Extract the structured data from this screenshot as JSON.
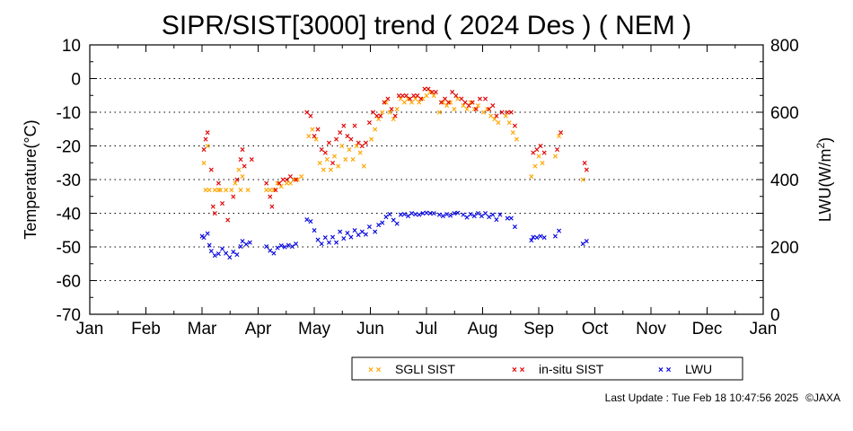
{
  "chart_data": {
    "type": "scatter",
    "title": "SIPR/SIST[3000] trend ( 2024 Des ) ( NEM )",
    "ylabel": "Temperature(°C)",
    "y2label_main": "LWU(W/m",
    "y2label_sup": "2",
    "y2label_end": ")",
    "ylim": [
      -70,
      10
    ],
    "y2lim": [
      0,
      800
    ],
    "yticks": [
      "10",
      "0",
      "-10",
      "-20",
      "-30",
      "-40",
      "-50",
      "-60",
      "-70"
    ],
    "y2ticks": [
      "800",
      "600",
      "400",
      "200",
      "0"
    ],
    "xticks": [
      "Jan",
      "Feb",
      "Mar",
      "Apr",
      "May",
      "Jun",
      "Jul",
      "Aug",
      "Sep",
      "Oct",
      "Nov",
      "Dec",
      "Jan"
    ],
    "grid": "horizontal dotted",
    "legend_position": "bottom",
    "series": [
      {
        "name": "SGLI SIST",
        "marker": "x",
        "color": "#ffa500",
        "axis": "left",
        "points": [
          [
            "2024-03-03",
            -25
          ],
          [
            "2024-03-04",
            -33
          ],
          [
            "2024-03-05",
            -20
          ],
          [
            "2024-03-06",
            -33
          ],
          [
            "2024-03-09",
            -33
          ],
          [
            "2024-03-11",
            -33
          ],
          [
            "2024-03-12",
            -33
          ],
          [
            "2024-03-15",
            -33
          ],
          [
            "2024-03-18",
            -33
          ],
          [
            "2024-03-20",
            -31
          ],
          [
            "2024-03-22",
            -27
          ],
          [
            "2024-03-23",
            -33
          ],
          [
            "2024-03-24",
            -29
          ],
          [
            "2024-03-27",
            -33
          ],
          [
            "2024-04-06",
            -33
          ],
          [
            "2024-04-08",
            -33
          ],
          [
            "2024-04-10",
            -33
          ],
          [
            "2024-04-12",
            -31
          ],
          [
            "2024-04-14",
            -32
          ],
          [
            "2024-04-17",
            -31
          ],
          [
            "2024-04-19",
            -31
          ],
          [
            "2024-04-21",
            -30
          ],
          [
            "2024-04-23",
            -30
          ],
          [
            "2024-04-25",
            -29
          ],
          [
            "2024-04-29",
            -17
          ],
          [
            "2024-05-01",
            -15
          ],
          [
            "2024-05-03",
            -18
          ],
          [
            "2024-05-05",
            -25
          ],
          [
            "2024-05-07",
            -27
          ],
          [
            "2024-05-09",
            -24
          ],
          [
            "2024-05-11",
            -27
          ],
          [
            "2024-05-13",
            -23
          ],
          [
            "2024-05-15",
            -26
          ],
          [
            "2024-05-17",
            -20
          ],
          [
            "2024-05-19",
            -24
          ],
          [
            "2024-05-21",
            -21
          ],
          [
            "2024-05-23",
            -24
          ],
          [
            "2024-05-25",
            -20
          ],
          [
            "2024-05-27",
            -22
          ],
          [
            "2024-05-29",
            -26
          ],
          [
            "2024-06-02",
            -18
          ],
          [
            "2024-06-04",
            -15
          ],
          [
            "2024-06-06",
            -12
          ],
          [
            "2024-06-08",
            -10
          ],
          [
            "2024-06-10",
            -7
          ],
          [
            "2024-06-12",
            -10
          ],
          [
            "2024-06-14",
            -12
          ],
          [
            "2024-06-16",
            -9
          ],
          [
            "2024-06-18",
            -6
          ],
          [
            "2024-06-20",
            -7
          ],
          [
            "2024-06-22",
            -6
          ],
          [
            "2024-06-24",
            -7
          ],
          [
            "2024-06-26",
            -6
          ],
          [
            "2024-06-28",
            -7
          ],
          [
            "2024-06-30",
            -6
          ],
          [
            "2024-07-02",
            -5
          ],
          [
            "2024-07-04",
            -4
          ],
          [
            "2024-07-06",
            -5
          ],
          [
            "2024-07-09",
            -10
          ],
          [
            "2024-07-11",
            -7
          ],
          [
            "2024-07-13",
            -8
          ],
          [
            "2024-07-15",
            -7
          ],
          [
            "2024-07-17",
            -9
          ],
          [
            "2024-07-19",
            -6
          ],
          [
            "2024-07-22",
            -8
          ],
          [
            "2024-07-24",
            -9
          ],
          [
            "2024-07-26",
            -7
          ],
          [
            "2024-07-28",
            -9
          ],
          [
            "2024-07-30",
            -8
          ],
          [
            "2024-08-02",
            -10
          ],
          [
            "2024-08-04",
            -9
          ],
          [
            "2024-08-06",
            -11
          ],
          [
            "2024-08-08",
            -12
          ],
          [
            "2024-08-10",
            -13
          ],
          [
            "2024-08-14",
            -11
          ],
          [
            "2024-08-16",
            -13
          ],
          [
            "2024-08-18",
            -16
          ],
          [
            "2024-08-20",
            -18
          ],
          [
            "2024-08-28",
            -29
          ],
          [
            "2024-08-30",
            -26
          ],
          [
            "2024-09-01",
            -23
          ],
          [
            "2024-09-03",
            -25
          ],
          [
            "2024-09-10",
            -23
          ],
          [
            "2024-09-12",
            -17
          ],
          [
            "2024-09-25",
            -30
          ]
        ]
      },
      {
        "name": "in-situ SIST",
        "marker": "x",
        "color": "#e00000",
        "axis": "left",
        "points": [
          [
            "2024-03-03",
            -21
          ],
          [
            "2024-03-04",
            -18
          ],
          [
            "2024-03-05",
            -16
          ],
          [
            "2024-03-07",
            -27
          ],
          [
            "2024-03-08",
            -38
          ],
          [
            "2024-03-09",
            -40
          ],
          [
            "2024-03-11",
            -31
          ],
          [
            "2024-03-13",
            -37
          ],
          [
            "2024-03-16",
            -42
          ],
          [
            "2024-03-19",
            -35
          ],
          [
            "2024-03-21",
            -30
          ],
          [
            "2024-03-23",
            -24
          ],
          [
            "2024-03-24",
            -21
          ],
          [
            "2024-03-25",
            -26
          ],
          [
            "2024-03-29",
            -24
          ],
          [
            "2024-04-06",
            -31
          ],
          [
            "2024-04-08",
            -35
          ],
          [
            "2024-04-09",
            -38
          ],
          [
            "2024-04-11",
            -33
          ],
          [
            "2024-04-13",
            -31
          ],
          [
            "2024-04-15",
            -30
          ],
          [
            "2024-04-17",
            -30
          ],
          [
            "2024-04-19",
            -29
          ],
          [
            "2024-04-22",
            -30
          ],
          [
            "2024-04-28",
            -10
          ],
          [
            "2024-04-30",
            -11
          ],
          [
            "2024-05-02",
            -17
          ],
          [
            "2024-05-04",
            -15
          ],
          [
            "2024-05-06",
            -21
          ],
          [
            "2024-05-08",
            -22
          ],
          [
            "2024-05-10",
            -19
          ],
          [
            "2024-05-12",
            -25
          ],
          [
            "2024-05-14",
            -18
          ],
          [
            "2024-05-16",
            -16
          ],
          [
            "2024-05-18",
            -14
          ],
          [
            "2024-05-20",
            -17
          ],
          [
            "2024-05-22",
            -18
          ],
          [
            "2024-05-24",
            -14
          ],
          [
            "2024-05-26",
            -19
          ],
          [
            "2024-05-28",
            -20
          ],
          [
            "2024-05-30",
            -19
          ],
          [
            "2024-06-01",
            -13
          ],
          [
            "2024-06-03",
            -10
          ],
          [
            "2024-06-05",
            -11
          ],
          [
            "2024-06-07",
            -11
          ],
          [
            "2024-06-09",
            -7
          ],
          [
            "2024-06-11",
            -6
          ],
          [
            "2024-06-13",
            -9
          ],
          [
            "2024-06-15",
            -11
          ],
          [
            "2024-06-17",
            -5
          ],
          [
            "2024-06-19",
            -5
          ],
          [
            "2024-06-21",
            -5
          ],
          [
            "2024-06-23",
            -6
          ],
          [
            "2024-06-25",
            -5
          ],
          [
            "2024-06-27",
            -5
          ],
          [
            "2024-06-29",
            -6
          ],
          [
            "2024-07-01",
            -3
          ],
          [
            "2024-07-03",
            -3
          ],
          [
            "2024-07-05",
            -4
          ],
          [
            "2024-07-07",
            -4
          ],
          [
            "2024-07-10",
            -7
          ],
          [
            "2024-07-12",
            -6
          ],
          [
            "2024-07-14",
            -7
          ],
          [
            "2024-07-16",
            -4
          ],
          [
            "2024-07-18",
            -5
          ],
          [
            "2024-07-21",
            -6
          ],
          [
            "2024-07-23",
            -7
          ],
          [
            "2024-07-25",
            -8
          ],
          [
            "2024-07-27",
            -7
          ],
          [
            "2024-07-29",
            -9
          ],
          [
            "2024-07-31",
            -6
          ],
          [
            "2024-08-03",
            -6
          ],
          [
            "2024-08-05",
            -9
          ],
          [
            "2024-08-07",
            -8
          ],
          [
            "2024-08-09",
            -11
          ],
          [
            "2024-08-12",
            -10
          ],
          [
            "2024-08-15",
            -10
          ],
          [
            "2024-08-17",
            -10
          ],
          [
            "2024-08-19",
            -14
          ],
          [
            "2024-08-29",
            -22
          ],
          [
            "2024-08-31",
            -21
          ],
          [
            "2024-09-02",
            -20
          ],
          [
            "2024-09-04",
            -22
          ],
          [
            "2024-09-11",
            -21
          ],
          [
            "2024-09-13",
            -16
          ],
          [
            "2024-09-26",
            -25
          ],
          [
            "2024-09-27",
            -27
          ]
        ]
      },
      {
        "name": "LWU",
        "marker": "x",
        "color": "#0000e0",
        "axis": "right",
        "points": [
          [
            "2024-03-02",
            232
          ],
          [
            "2024-03-03",
            228
          ],
          [
            "2024-03-05",
            240
          ],
          [
            "2024-03-06",
            205
          ],
          [
            "2024-03-07",
            188
          ],
          [
            "2024-03-09",
            175
          ],
          [
            "2024-03-11",
            180
          ],
          [
            "2024-03-13",
            195
          ],
          [
            "2024-03-15",
            182
          ],
          [
            "2024-03-17",
            170
          ],
          [
            "2024-03-19",
            186
          ],
          [
            "2024-03-21",
            178
          ],
          [
            "2024-03-23",
            202
          ],
          [
            "2024-03-24",
            218
          ],
          [
            "2024-03-26",
            208
          ],
          [
            "2024-03-28",
            214
          ],
          [
            "2024-04-06",
            202
          ],
          [
            "2024-04-08",
            190
          ],
          [
            "2024-04-10",
            182
          ],
          [
            "2024-04-12",
            198
          ],
          [
            "2024-04-14",
            204
          ],
          [
            "2024-04-16",
            200
          ],
          [
            "2024-04-18",
            206
          ],
          [
            "2024-04-20",
            202
          ],
          [
            "2024-04-22",
            210
          ],
          [
            "2024-04-28",
            282
          ],
          [
            "2024-04-30",
            276
          ],
          [
            "2024-05-02",
            250
          ],
          [
            "2024-05-04",
            222
          ],
          [
            "2024-05-06",
            210
          ],
          [
            "2024-05-08",
            228
          ],
          [
            "2024-05-10",
            214
          ],
          [
            "2024-05-12",
            230
          ],
          [
            "2024-05-14",
            214
          ],
          [
            "2024-05-16",
            246
          ],
          [
            "2024-05-18",
            226
          ],
          [
            "2024-05-20",
            242
          ],
          [
            "2024-05-22",
            230
          ],
          [
            "2024-05-24",
            250
          ],
          [
            "2024-05-26",
            236
          ],
          [
            "2024-05-28",
            245
          ],
          [
            "2024-05-30",
            238
          ],
          [
            "2024-06-01",
            260
          ],
          [
            "2024-06-04",
            245
          ],
          [
            "2024-06-06",
            265
          ],
          [
            "2024-06-08",
            272
          ],
          [
            "2024-06-10",
            290
          ],
          [
            "2024-06-12",
            298
          ],
          [
            "2024-06-14",
            280
          ],
          [
            "2024-06-16",
            270
          ],
          [
            "2024-06-18",
            296
          ],
          [
            "2024-06-20",
            298
          ],
          [
            "2024-06-22",
            292
          ],
          [
            "2024-06-24",
            300
          ],
          [
            "2024-06-26",
            298
          ],
          [
            "2024-06-28",
            296
          ],
          [
            "2024-06-30",
            300
          ],
          [
            "2024-07-02",
            302
          ],
          [
            "2024-07-04",
            300
          ],
          [
            "2024-07-06",
            300
          ],
          [
            "2024-07-09",
            296
          ],
          [
            "2024-07-11",
            292
          ],
          [
            "2024-07-13",
            298
          ],
          [
            "2024-07-15",
            294
          ],
          [
            "2024-07-17",
            300
          ],
          [
            "2024-07-19",
            302
          ],
          [
            "2024-07-22",
            296
          ],
          [
            "2024-07-24",
            288
          ],
          [
            "2024-07-26",
            298
          ],
          [
            "2024-07-28",
            292
          ],
          [
            "2024-07-30",
            300
          ],
          [
            "2024-08-01",
            292
          ],
          [
            "2024-08-03",
            300
          ],
          [
            "2024-08-05",
            290
          ],
          [
            "2024-08-07",
            296
          ],
          [
            "2024-08-09",
            282
          ],
          [
            "2024-08-11",
            296
          ],
          [
            "2024-08-15",
            286
          ],
          [
            "2024-08-17",
            285
          ],
          [
            "2024-08-19",
            260
          ],
          [
            "2024-08-28",
            220
          ],
          [
            "2024-08-29",
            230
          ],
          [
            "2024-08-31",
            228
          ],
          [
            "2024-09-02",
            232
          ],
          [
            "2024-09-04",
            228
          ],
          [
            "2024-09-10",
            232
          ],
          [
            "2024-09-12",
            248
          ],
          [
            "2024-09-25",
            210
          ],
          [
            "2024-09-27",
            218
          ]
        ]
      }
    ]
  },
  "footer": {
    "last_update": "Last Update : Tue Feb 18 10:47:56 2025",
    "copyright": "©JAXA"
  }
}
